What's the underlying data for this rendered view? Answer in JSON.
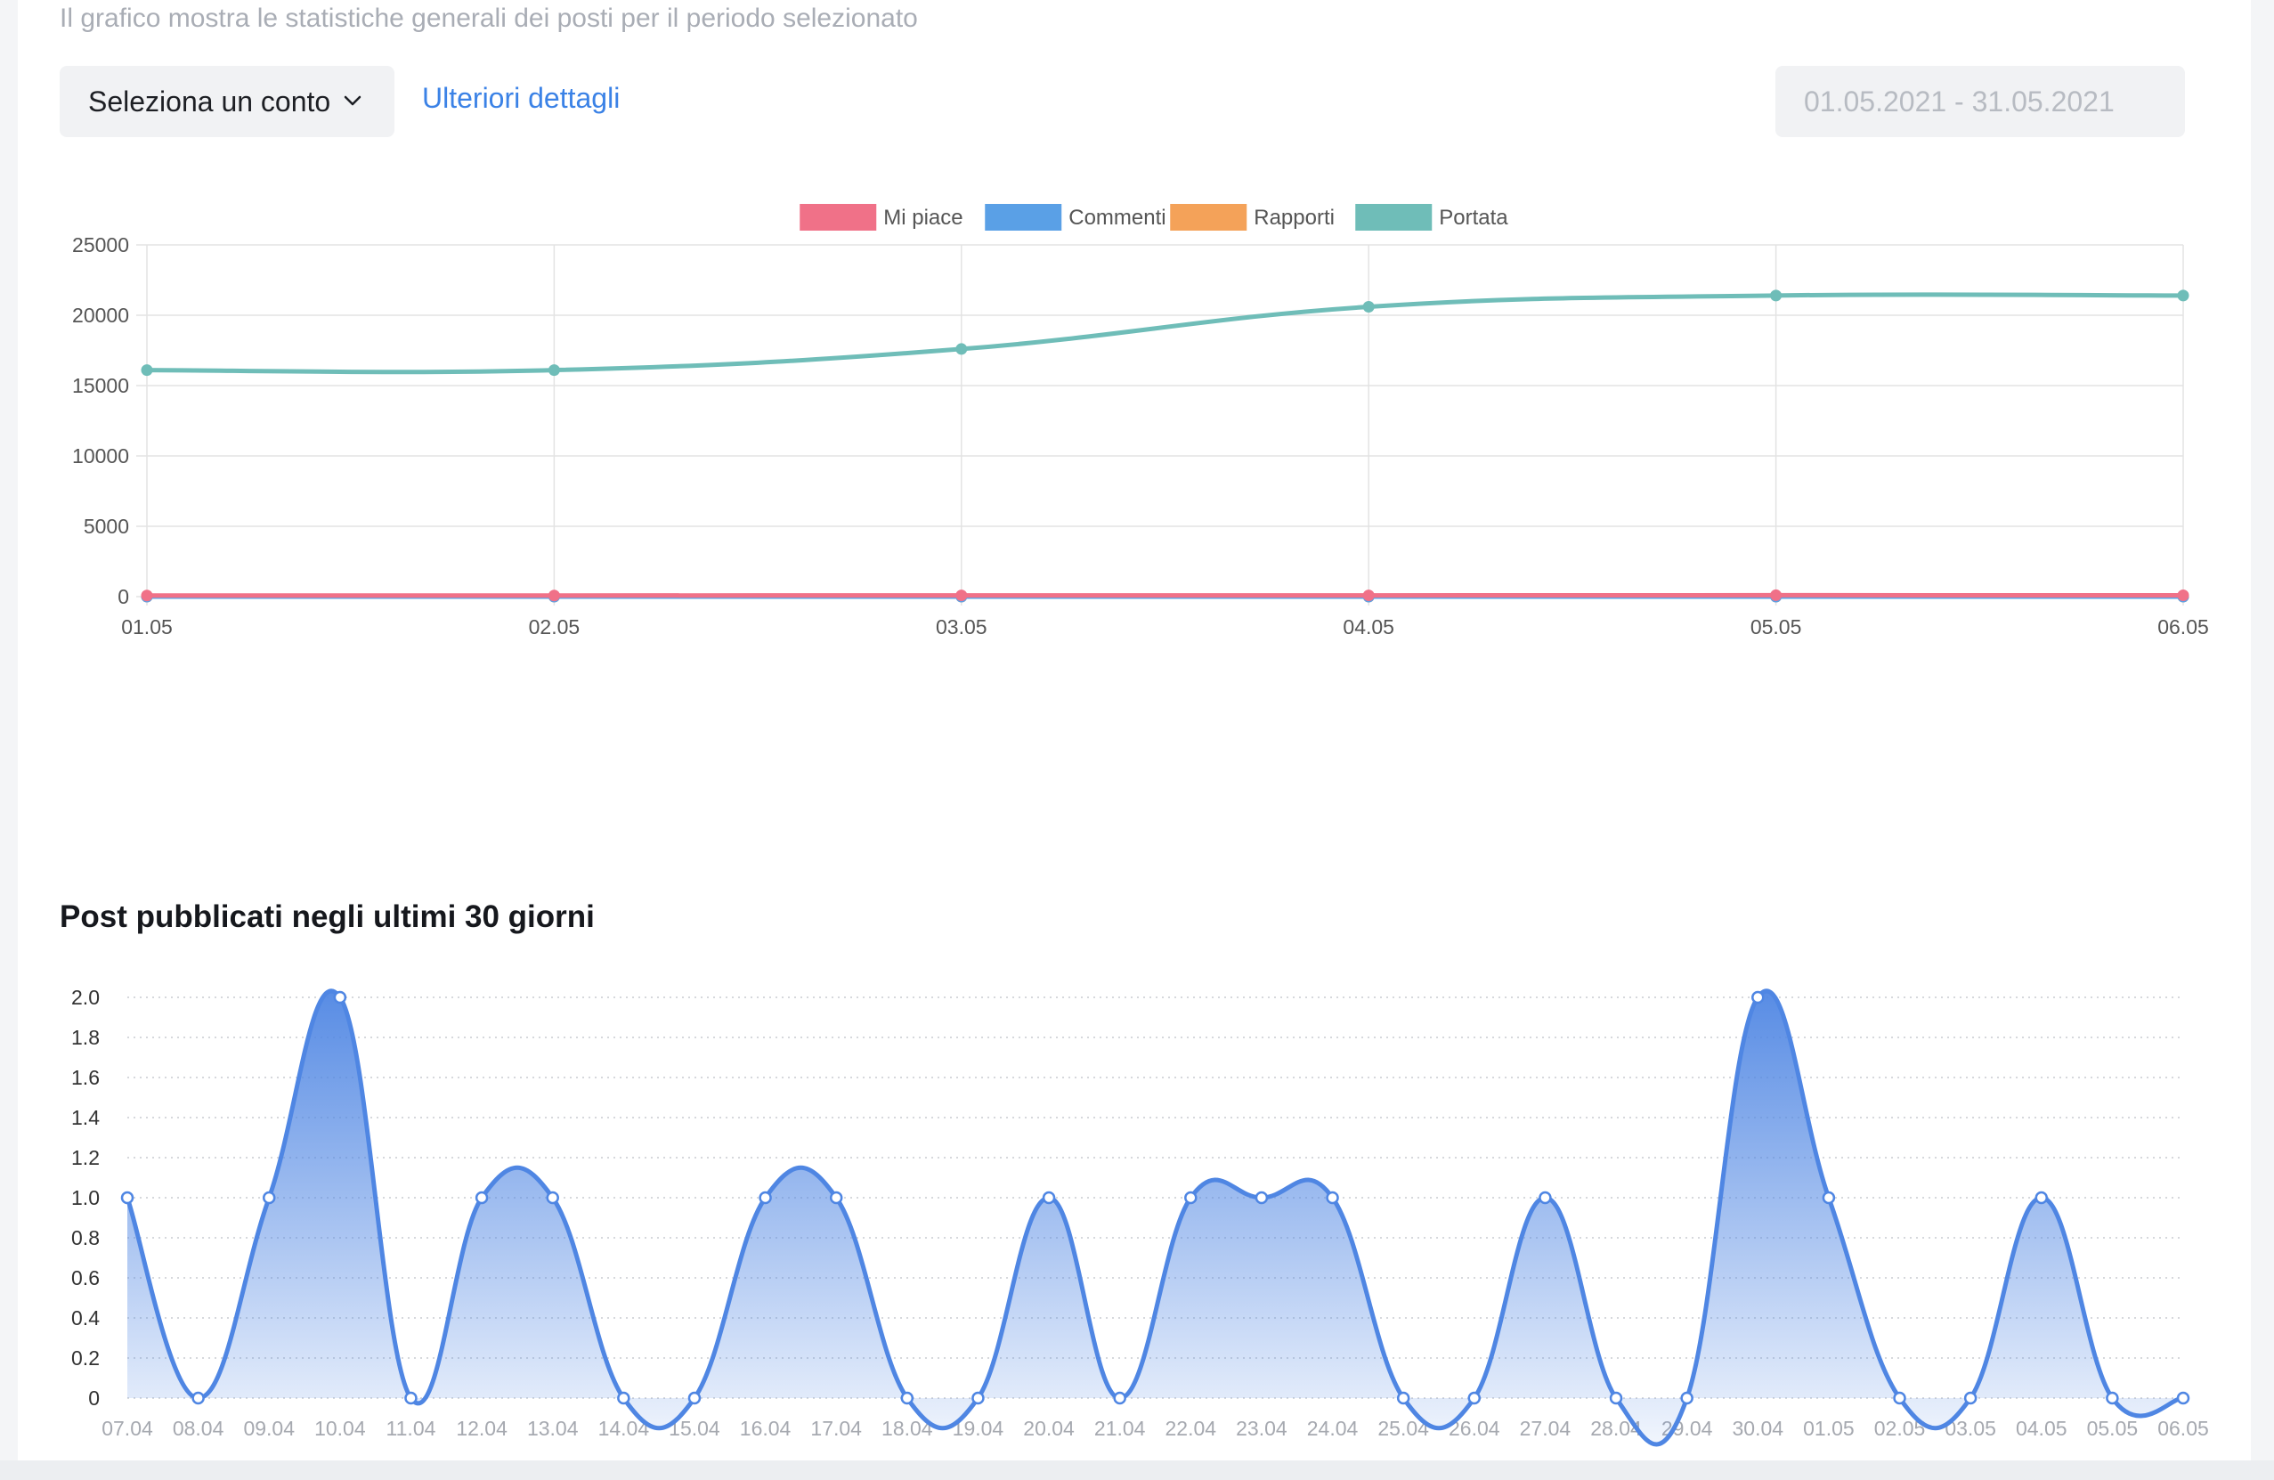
{
  "header": {
    "subtitle": "Il grafico mostra le statistiche generali dei posti per il periodo selezionato",
    "account_select": "Seleziona un conto",
    "details_link": "Ulteriori dettagli",
    "date_range": "01.05.2021 - 31.05.2021"
  },
  "section2_title": "Post pubblicati negli ultimi 30 giorni",
  "chart_data": [
    {
      "type": "line",
      "x": [
        "01.05",
        "02.05",
        "03.05",
        "04.05",
        "05.05",
        "06.05"
      ],
      "series": [
        {
          "name": "Mi piace",
          "color": "#f07188",
          "values": [
            80,
            80,
            90,
            90,
            100,
            95
          ]
        },
        {
          "name": "Commenti",
          "color": "#5aa0e6",
          "values": [
            0,
            0,
            0,
            0,
            0,
            0
          ]
        },
        {
          "name": "Rapporti",
          "color": "#f4a259",
          "values": [
            0,
            0,
            0,
            0,
            0,
            0
          ]
        },
        {
          "name": "Portata",
          "color": "#6fbdb8",
          "values": [
            16100,
            16100,
            17600,
            20600,
            21400,
            21400
          ]
        }
      ],
      "ylim": [
        0,
        25000
      ],
      "yticks": [
        0,
        5000,
        10000,
        15000,
        20000,
        25000
      ],
      "legend": "top-center",
      "grid": true
    },
    {
      "type": "area",
      "x": [
        "07.04",
        "08.04",
        "09.04",
        "10.04",
        "11.04",
        "12.04",
        "13.04",
        "14.04",
        "15.04",
        "16.04",
        "17.04",
        "18.04",
        "19.04",
        "20.04",
        "21.04",
        "22.04",
        "23.04",
        "24.04",
        "25.04",
        "26.04",
        "27.04",
        "28.04",
        "29.04",
        "30.04",
        "01.05",
        "02.05",
        "03.05",
        "04.05",
        "05.05",
        "06.05"
      ],
      "values": [
        1,
        0,
        1,
        2,
        0,
        1,
        1,
        0,
        0,
        1,
        1,
        0,
        0,
        1,
        0,
        1,
        1,
        1,
        0,
        0,
        1,
        0,
        0,
        2,
        1,
        0,
        0,
        1,
        0,
        0
      ],
      "color": "#4f86e3",
      "ylim": [
        0,
        2
      ],
      "yticks": [
        "0",
        "0.2",
        "0.4",
        "0.6",
        "0.8",
        "1.0",
        "1.2",
        "1.4",
        "1.6",
        "1.8",
        "2.0"
      ],
      "grid": "dotted"
    }
  ]
}
